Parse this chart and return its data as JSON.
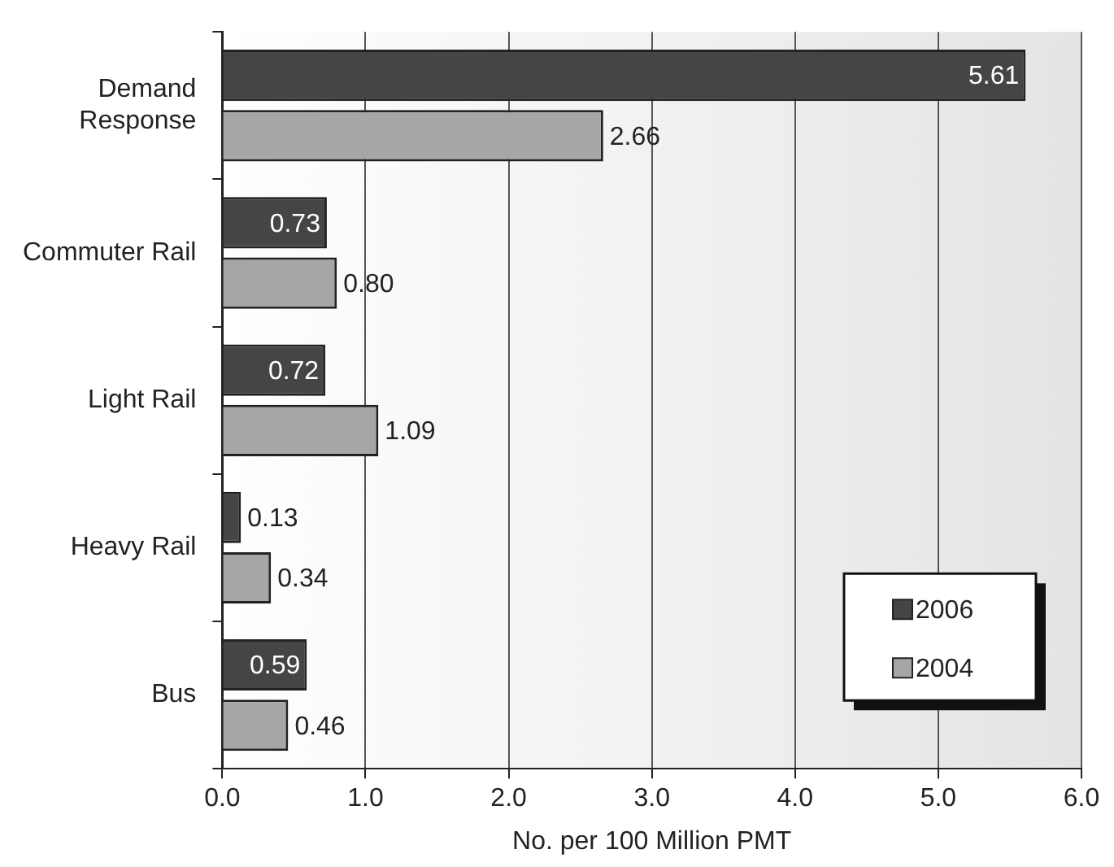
{
  "chart_data": {
    "type": "bar",
    "orientation": "horizontal",
    "xlabel": "No. per 100 Million PMT",
    "categories": [
      "Demand Response",
      "Commuter Rail",
      "Light Rail",
      "Heavy Rail",
      "Bus"
    ],
    "series": [
      {
        "name": "2006",
        "color": "#454545",
        "values": [
          5.61,
          0.73,
          0.72,
          0.13,
          0.59
        ]
      },
      {
        "name": "2004",
        "color": "#a6a6a6",
        "values": [
          2.66,
          0.8,
          1.09,
          0.34,
          0.46
        ]
      }
    ],
    "value_labels": [
      [
        "5.61",
        "0.73",
        "0.72",
        "0.13",
        "0.59"
      ],
      [
        "2.66",
        "0.80",
        "1.09",
        "0.34",
        "0.46"
      ]
    ],
    "xlim": [
      0,
      6
    ],
    "xticks": [
      {
        "value": 0,
        "label": "0.0"
      },
      {
        "value": 1,
        "label": "1.0"
      },
      {
        "value": 2,
        "label": "2.0"
      },
      {
        "value": 3,
        "label": "3.0"
      },
      {
        "value": 4,
        "label": "4.0"
      },
      {
        "value": 5,
        "label": "5.0"
      },
      {
        "value": 6,
        "label": "6.0"
      }
    ],
    "grid": "x",
    "legend": "bottom right"
  }
}
